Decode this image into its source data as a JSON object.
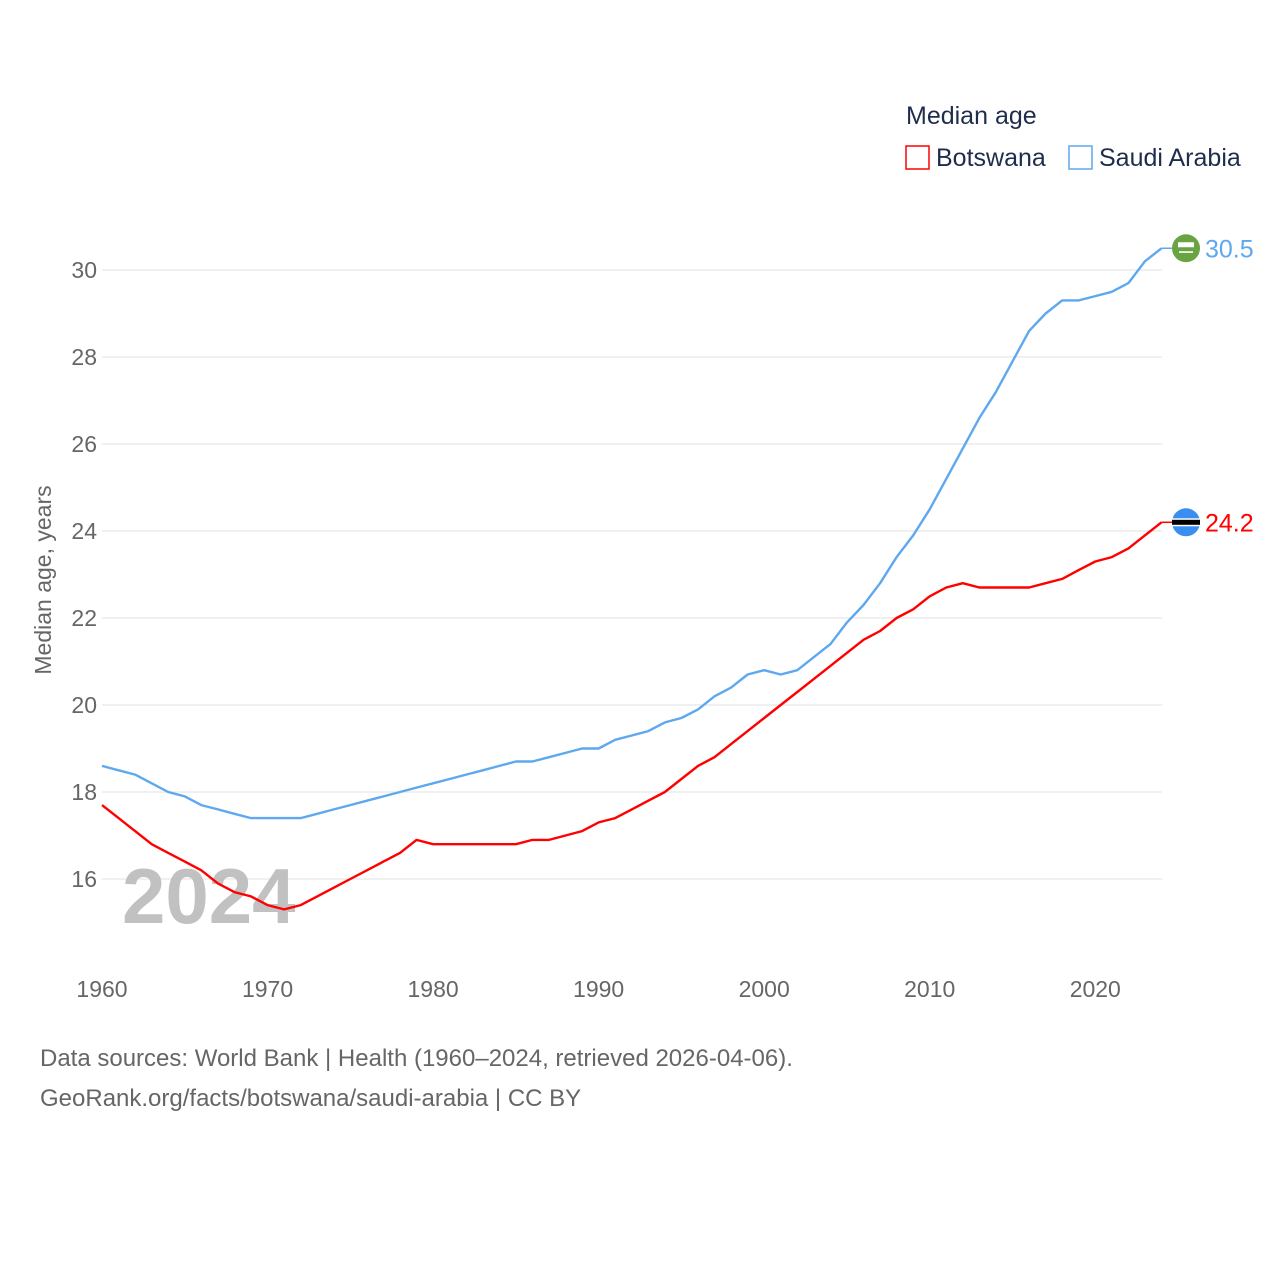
{
  "chart_data": {
    "type": "line",
    "title": "Median age",
    "xlabel": "",
    "ylabel": "Median age, years",
    "xlim": [
      1960,
      2024
    ],
    "ylim": [
      14.5,
      31
    ],
    "yticks": [
      16,
      18,
      20,
      22,
      24,
      26,
      28,
      30
    ],
    "xticks": [
      1960,
      1970,
      1980,
      1990,
      2000,
      2010,
      2020
    ],
    "grid": true,
    "legend_position": "top-right",
    "watermark_year": "2024",
    "x": [
      1960,
      1961,
      1962,
      1963,
      1964,
      1965,
      1966,
      1967,
      1968,
      1969,
      1970,
      1971,
      1972,
      1973,
      1974,
      1975,
      1976,
      1977,
      1978,
      1979,
      1980,
      1981,
      1982,
      1983,
      1984,
      1985,
      1986,
      1987,
      1988,
      1989,
      1990,
      1991,
      1992,
      1993,
      1994,
      1995,
      1996,
      1997,
      1998,
      1999,
      2000,
      2001,
      2002,
      2003,
      2004,
      2005,
      2006,
      2007,
      2008,
      2009,
      2010,
      2011,
      2012,
      2013,
      2014,
      2015,
      2016,
      2017,
      2018,
      2019,
      2020,
      2021,
      2022,
      2023,
      2024
    ],
    "series": [
      {
        "name": "Botswana",
        "color": "#ff0000",
        "end_label": "24.2",
        "flag": "botswana-flag",
        "values": [
          17.7,
          17.4,
          17.1,
          16.8,
          16.6,
          16.4,
          16.2,
          15.9,
          15.7,
          15.6,
          15.4,
          15.3,
          15.4,
          15.6,
          15.8,
          16.0,
          16.2,
          16.4,
          16.6,
          16.9,
          16.8,
          16.8,
          16.8,
          16.8,
          16.8,
          16.8,
          16.9,
          16.9,
          17.0,
          17.1,
          17.3,
          17.4,
          17.6,
          17.8,
          18.0,
          18.3,
          18.6,
          18.8,
          19.1,
          19.4,
          19.7,
          20.0,
          20.3,
          20.6,
          20.9,
          21.2,
          21.5,
          21.7,
          22.0,
          22.2,
          22.5,
          22.7,
          22.8,
          22.7,
          22.7,
          22.7,
          22.7,
          22.8,
          22.9,
          23.1,
          23.3,
          23.4,
          23.6,
          23.9,
          24.2
        ]
      },
      {
        "name": "Saudi Arabia",
        "color": "#5ea8ef",
        "end_label": "30.5",
        "flag": "saudi-arabia-flag",
        "values": [
          18.6,
          18.5,
          18.4,
          18.2,
          18.0,
          17.9,
          17.7,
          17.6,
          17.5,
          17.4,
          17.4,
          17.4,
          17.4,
          17.5,
          17.6,
          17.7,
          17.8,
          17.9,
          18.0,
          18.1,
          18.2,
          18.3,
          18.4,
          18.5,
          18.6,
          18.7,
          18.7,
          18.8,
          18.9,
          19.0,
          19.0,
          19.2,
          19.3,
          19.4,
          19.6,
          19.7,
          19.9,
          20.2,
          20.4,
          20.7,
          20.8,
          20.7,
          20.8,
          21.1,
          21.4,
          21.9,
          22.3,
          22.8,
          23.4,
          23.9,
          24.5,
          25.2,
          25.9,
          26.6,
          27.2,
          27.9,
          28.6,
          29.0,
          29.3,
          29.3,
          29.4,
          29.5,
          29.7,
          30.2,
          30.5
        ]
      }
    ]
  },
  "footer": {
    "sources": "Data sources: World Bank | Health (1960–2024, retrieved 2026-04-06).",
    "credit": "GeoRank.org/facts/botswana/saudi-arabia | CC BY"
  }
}
